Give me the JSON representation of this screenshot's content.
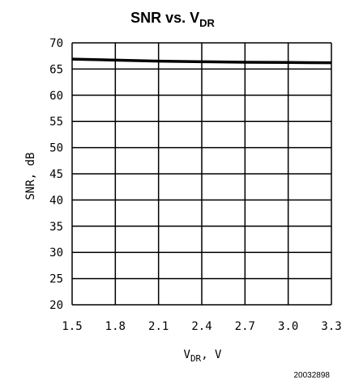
{
  "chart_data": {
    "type": "line",
    "title_main": "SNR vs. V",
    "title_sub": "DR",
    "xlabel_main": "V",
    "xlabel_sub": "DR",
    "xlabel_unit": ", V",
    "ylabel": "SNR, dB",
    "xlim": [
      1.5,
      3.3
    ],
    "ylim": [
      20,
      70
    ],
    "x_ticks": [
      "1.5",
      "1.8",
      "2.1",
      "2.4",
      "2.7",
      "3.0",
      "3.3"
    ],
    "y_ticks": [
      "20",
      "25",
      "30",
      "35",
      "40",
      "45",
      "50",
      "55",
      "60",
      "65",
      "70"
    ],
    "grid": true,
    "series": [
      {
        "x": [
          1.5,
          1.8,
          2.1,
          2.4,
          2.7,
          3.0,
          3.3
        ],
        "y": [
          66.9,
          66.7,
          66.5,
          66.4,
          66.3,
          66.25,
          66.2
        ]
      }
    ]
  },
  "figure_id": "20032898"
}
